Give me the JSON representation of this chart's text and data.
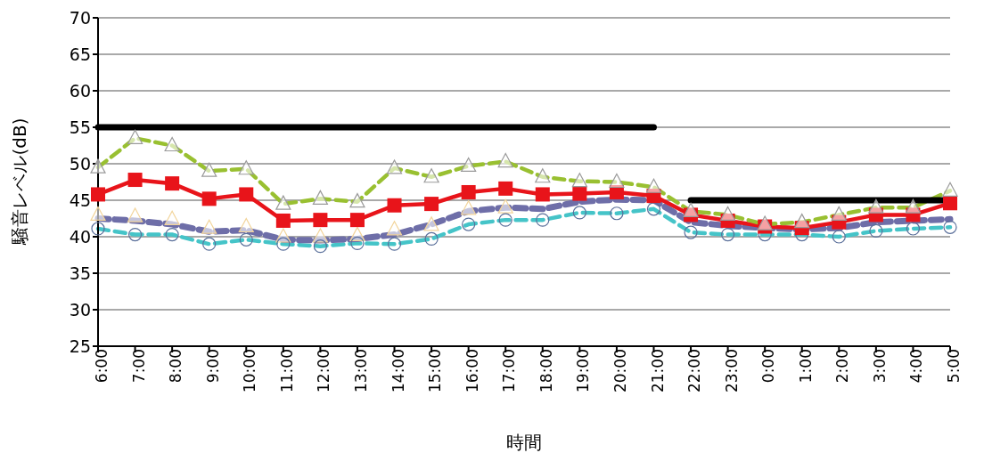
{
  "chart_data": {
    "type": "line",
    "xlabel": "時間",
    "ylabel": "騒音レベル(dB)",
    "categories": [
      "6:00",
      "7:00",
      "8:00",
      "9:00",
      "10:00",
      "11:00",
      "12:00",
      "13:00",
      "14:00",
      "15:00",
      "16:00",
      "17:00",
      "18:00",
      "19:00",
      "20:00",
      "21:00",
      "22:00",
      "23:00",
      "0:00",
      "1:00",
      "2:00",
      "3:00",
      "4:00",
      "5:00"
    ],
    "ylim": [
      25,
      70
    ],
    "yticks": [
      25,
      30,
      35,
      40,
      45,
      50,
      55,
      60,
      65,
      70
    ],
    "grid": "y",
    "series": [
      {
        "type": "scatter",
        "color": "#f2d49a",
        "marker": "triangle",
        "values": [
          43.0,
          42.8,
          42.4,
          41.2,
          41.4,
          40.0,
          40.0,
          40.2,
          41.0,
          41.6,
          43.8,
          44.0,
          null,
          null,
          null,
          null,
          null,
          null,
          null,
          null,
          null,
          null,
          null,
          null
        ]
      },
      {
        "color": "#45c4c8",
        "marker": "circle",
        "line_style": "dashed",
        "values": [
          41.1,
          40.3,
          40.3,
          39.0,
          39.6,
          39.0,
          38.7,
          39.1,
          39.0,
          39.7,
          41.7,
          42.3,
          42.3,
          43.3,
          43.2,
          43.8,
          40.6,
          40.3,
          40.3,
          40.3,
          40.0,
          40.8,
          41.1,
          41.3
        ]
      },
      {
        "color": "#6e6ea8",
        "marker": "none",
        "line_style": "dashed",
        "values": [
          42.5,
          42.2,
          41.7,
          40.7,
          40.9,
          39.6,
          39.5,
          39.7,
          40.3,
          41.7,
          43.5,
          44.0,
          43.8,
          44.8,
          45.1,
          45.0,
          42.0,
          41.5,
          41.2,
          41.0,
          41.2,
          42.0,
          42.2,
          42.4
        ]
      },
      {
        "color": "#e8141a",
        "marker": "square",
        "line_style": "solid",
        "values": [
          45.8,
          47.8,
          47.3,
          45.2,
          45.8,
          42.2,
          42.3,
          42.3,
          44.3,
          44.5,
          46.1,
          46.6,
          45.8,
          45.9,
          46.1,
          45.6,
          43.0,
          42.2,
          41.4,
          41.2,
          42.0,
          43.0,
          43.0,
          44.6
        ]
      },
      {
        "color": "#99c031",
        "marker": "triangle",
        "line_style": "dashed",
        "values": [
          49.5,
          53.5,
          52.5,
          49.0,
          49.3,
          44.5,
          45.2,
          44.8,
          49.4,
          48.2,
          49.7,
          50.3,
          48.2,
          47.6,
          47.5,
          46.8,
          43.5,
          43.0,
          41.7,
          42.0,
          43.0,
          44.0,
          44.0,
          46.3
        ]
      },
      {
        "color": "#000000",
        "marker": "none",
        "line_style": "solid",
        "values": [
          55,
          55,
          55,
          55,
          55,
          55,
          55,
          55,
          55,
          55,
          55,
          55,
          55,
          55,
          55,
          55,
          null,
          null,
          null,
          null,
          null,
          null,
          null,
          null
        ]
      },
      {
        "color": "#000000",
        "marker": "none",
        "line_style": "solid",
        "values": [
          null,
          null,
          null,
          null,
          null,
          null,
          null,
          null,
          null,
          null,
          null,
          null,
          null,
          null,
          null,
          null,
          45,
          45,
          45,
          45,
          45,
          45,
          45,
          45
        ]
      }
    ]
  }
}
